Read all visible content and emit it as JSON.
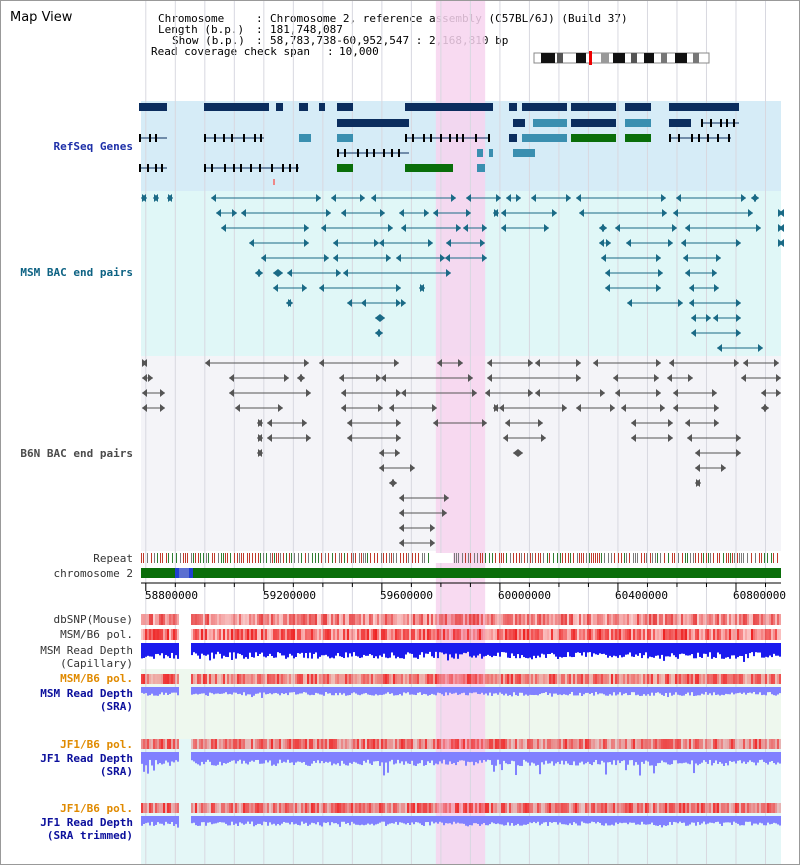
{
  "title": "Map View",
  "header": {
    "chromosome_key": "Chromosome",
    "chromosome_val": "Chromosome 2, reference assembly (C57BL/6J) (Build 37)",
    "length_key": "Length (b.p.)",
    "length_val": "181,748,087",
    "show_key": "Show (b.p.)",
    "show_val": "58,783,738-60,952,547 : 2,168,810 bp",
    "span_key": "Read coverage check span",
    "span_val": "10,000"
  },
  "tracks": {
    "refseq": "RefSeq Genes",
    "msm_bac": "MSM BAC end pairs",
    "b6n_bac": "B6N BAC end pairs",
    "repeat": "Repeat",
    "chromosome": "chromosome 2",
    "dbsnp": "dbSNP(Mouse)",
    "msm_b6_pol": "MSM/B6 pol.",
    "msm_read_depth_cap_1": "MSM Read Depth",
    "msm_read_depth_cap_2": "(Capillary)",
    "msm_b6_pol_2": "MSM/B6 pol.",
    "msm_read_depth_sra_1": "MSM Read Depth",
    "msm_read_depth_sra_2": "(SRA)",
    "jf1_b6_pol": "JF1/B6 pol.",
    "jf1_read_depth_sra_1": "JF1 Read Depth",
    "jf1_read_depth_sra_2": "(SRA)",
    "jf1_b6_pol_2": "JF1/B6 pol.",
    "jf1_read_depth_trim_1": "JF1 Read Depth",
    "jf1_read_depth_trim_2": "(SRA trimmed)"
  },
  "axis": {
    "start": 58783738,
    "end": 60952547,
    "ticks": [
      "58800000",
      "59200000",
      "59600000",
      "60000000",
      "60400000",
      "60800000"
    ],
    "tick_values": [
      58800000,
      59200000,
      59600000,
      60000000,
      60400000,
      60800000
    ]
  },
  "highlight": {
    "start": 59783000,
    "end": 59950000
  },
  "colors": {
    "refseq_bg": "#d6ecf7",
    "msm_bg": "#e0f7f7",
    "highlight": "#f7d4ef",
    "gene_dark": "#0b2d5e",
    "gene_teal": "#3a8fb0",
    "gene_green": "#0a6e0a",
    "bac_msm": "#1a6a86",
    "bac_b6n": "#555555",
    "chromosome": "#0a6e0a",
    "depth_blue": "#1a1aee",
    "depth_light": "#8080ff",
    "pol_red": "#ee2222"
  },
  "ideogram": {
    "marker": "red-band-marker"
  }
}
